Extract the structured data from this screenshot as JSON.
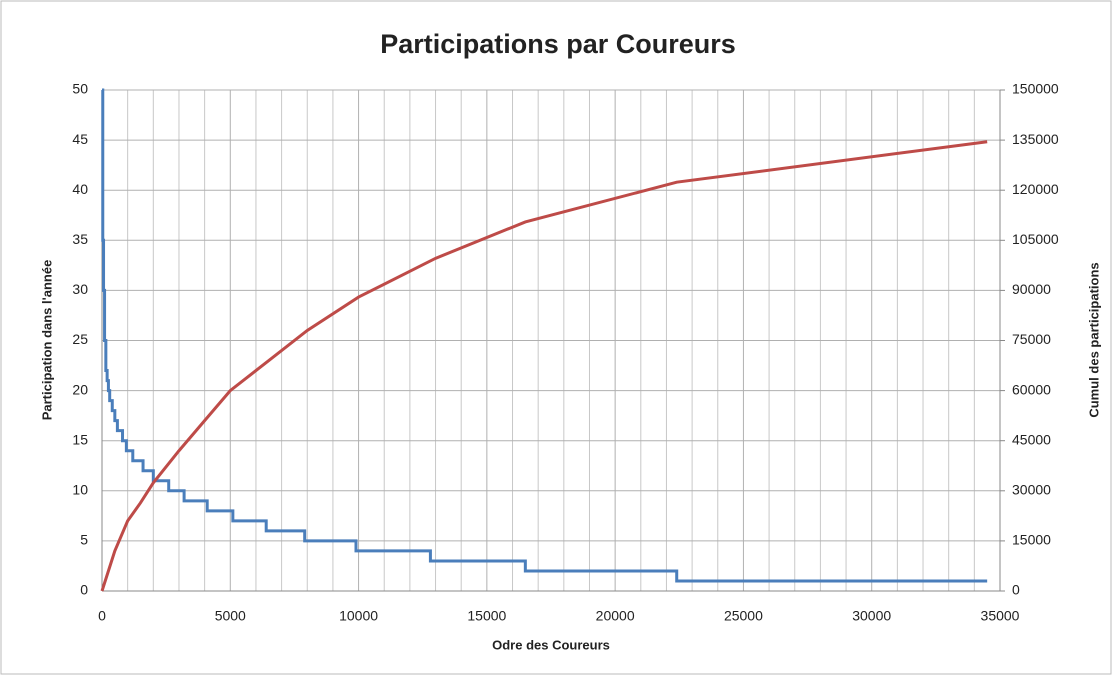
{
  "chart_data": {
    "type": "line",
    "title": "Participations par Coureurs",
    "xlabel": "Odre des  Coureurs",
    "ylabel": "Participation dans l'année",
    "y2label": "Cumul des participations",
    "xlim": [
      0,
      35000
    ],
    "xticks": [
      0,
      5000,
      10000,
      15000,
      20000,
      25000,
      30000,
      35000
    ],
    "x_minor_ticks": [
      1000,
      2000,
      3000,
      4000,
      6000,
      7000,
      8000,
      9000,
      11000,
      12000,
      13000,
      14000,
      16000,
      17000,
      18000,
      19000,
      21000,
      22000,
      23000,
      24000,
      26000,
      27000,
      28000,
      29000,
      31000,
      32000,
      33000,
      34000
    ],
    "ylim": [
      0,
      50
    ],
    "yticks": [
      0,
      5,
      10,
      15,
      20,
      25,
      30,
      35,
      40,
      45,
      50
    ],
    "y2lim": [
      0,
      150000
    ],
    "y2ticks": [
      0,
      15000,
      30000,
      45000,
      60000,
      75000,
      90000,
      105000,
      120000,
      135000,
      150000
    ],
    "grid": true,
    "series": [
      {
        "name": "Participation dans l'année",
        "color": "#4a7ebb",
        "x": [
          0,
          30,
          30,
          60,
          60,
          100,
          100,
          150,
          150,
          200,
          200,
          250,
          250,
          300,
          300,
          400,
          400,
          500,
          500,
          600,
          600,
          800,
          800,
          950,
          950,
          1200,
          1200,
          1600,
          1600,
          2000,
          2000,
          2600,
          2600,
          3200,
          3200,
          4100,
          4100,
          5100,
          5100,
          6400,
          6400,
          7900,
          7900,
          9900,
          9900,
          12800,
          12800,
          16500,
          16500,
          22400,
          22400,
          34500
        ],
        "values": [
          50,
          50,
          35,
          35,
          30,
          30,
          25,
          25,
          22,
          22,
          21,
          21,
          20,
          20,
          19,
          19,
          18,
          18,
          17,
          17,
          16,
          16,
          15,
          15,
          14,
          14,
          13,
          13,
          12,
          12,
          11,
          11,
          10,
          10,
          9,
          9,
          8,
          8,
          7,
          7,
          6,
          6,
          5,
          5,
          4,
          4,
          3,
          3,
          2,
          2,
          1,
          1
        ]
      },
      {
        "name": "Cumul des participations",
        "color": "#be4b48",
        "axis": "y2",
        "x": [
          0,
          500,
          1000,
          1500,
          2000,
          3000,
          4000,
          5000,
          6500,
          8000,
          10000,
          13000,
          16500,
          22400,
          34500
        ],
        "values": [
          0,
          12000,
          21000,
          26400,
          32400,
          42000,
          51000,
          60000,
          69000,
          78000,
          88000,
          99600,
          110500,
          122400,
          134500
        ]
      }
    ]
  }
}
